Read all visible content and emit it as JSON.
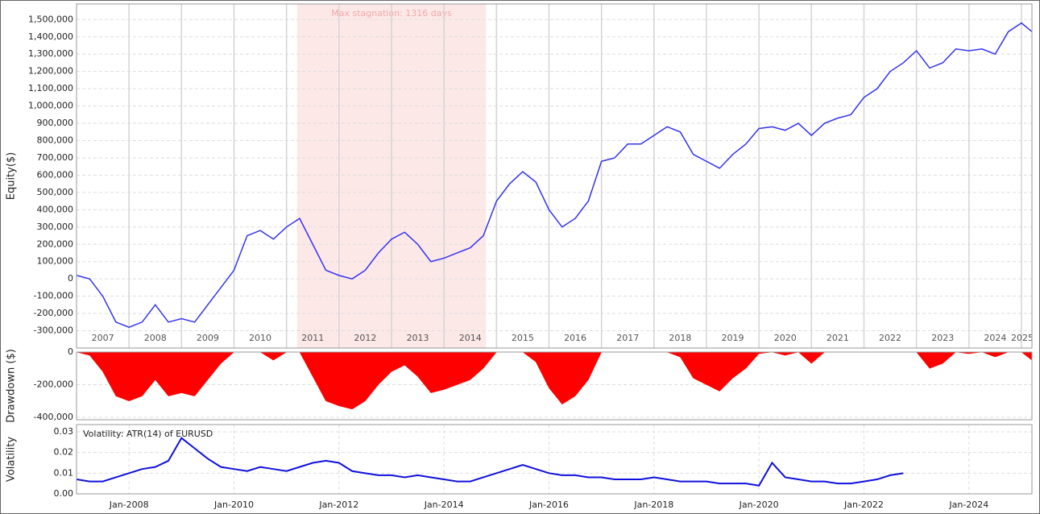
{
  "chart_data": [
    {
      "type": "line",
      "ylabel": "Equity($)",
      "color": "#3333ee",
      "grid": true,
      "xlim": [
        2007,
        2025.2
      ],
      "ylim": [
        -400000,
        1590000
      ],
      "yticks": [
        {
          "value": -300000,
          "label": "-300,000"
        },
        {
          "value": -200000,
          "label": "-200,000"
        },
        {
          "value": -100000,
          "label": "-100,000"
        },
        0,
        {
          "value": 100000,
          "label": "100,000"
        },
        {
          "value": 200000,
          "label": "200,000"
        },
        {
          "value": 300000,
          "label": "300,000"
        },
        {
          "value": 400000,
          "label": "400,000"
        },
        {
          "value": 500000,
          "label": "500,000"
        },
        {
          "value": 600000,
          "label": "600,000"
        },
        {
          "value": 700000,
          "label": "700,000"
        },
        {
          "value": 800000,
          "label": "800,000"
        },
        {
          "value": 900000,
          "label": "900,000"
        },
        {
          "value": 1000000,
          "label": "1,000,000"
        },
        {
          "value": 1100000,
          "label": "1,100,000"
        },
        {
          "value": 1200000,
          "label": "1,200,000"
        },
        {
          "value": 1300000,
          "label": "1,300,000"
        },
        {
          "value": 1400000,
          "label": "1,400,000"
        },
        {
          "value": 1500000,
          "label": "1,500,000"
        }
      ],
      "xticks": [
        {
          "value": 2007,
          "label": "2007"
        },
        {
          "value": 2008,
          "label": "2008"
        },
        {
          "value": 2009,
          "label": "2009"
        },
        {
          "value": 2010,
          "label": "2010"
        },
        {
          "value": 2011,
          "label": "2011"
        },
        {
          "value": 2012,
          "label": "2012"
        },
        {
          "value": 2013,
          "label": "2013"
        },
        {
          "value": 2014,
          "label": "2014"
        },
        {
          "value": 2015,
          "label": "2015"
        },
        {
          "value": 2016,
          "label": "2016"
        },
        {
          "value": 2017,
          "label": "2017"
        },
        {
          "value": 2018,
          "label": "2018"
        },
        {
          "value": 2019,
          "label": "2019"
        },
        {
          "value": 2020,
          "label": "2020"
        },
        {
          "value": 2021,
          "label": "2021"
        },
        {
          "value": 2022,
          "label": "2022"
        },
        {
          "value": 2023,
          "label": "2023"
        },
        {
          "value": 2024,
          "label": "2024"
        },
        {
          "value": 2025,
          "label": "2025"
        }
      ],
      "annotation": {
        "text": "Max stagnation: 1316 days",
        "x": [
          2011.2,
          2014.8
        ],
        "color": "#fde8e8"
      },
      "x": [
        2007,
        2007.25,
        2007.5,
        2007.75,
        2008,
        2008.25,
        2008.5,
        2008.75,
        2009,
        2009.25,
        2009.5,
        2009.75,
        2010,
        2010.25,
        2010.5,
        2010.75,
        2011,
        2011.25,
        2011.5,
        2011.75,
        2012,
        2012.25,
        2012.5,
        2012.75,
        2013,
        2013.25,
        2013.5,
        2013.75,
        2014,
        2014.25,
        2014.5,
        2014.75,
        2015,
        2015.25,
        2015.5,
        2015.75,
        2016,
        2016.25,
        2016.5,
        2016.75,
        2017,
        2017.25,
        2017.5,
        2017.75,
        2018,
        2018.25,
        2018.5,
        2018.75,
        2019,
        2019.25,
        2019.5,
        2019.75,
        2020,
        2020.25,
        2020.5,
        2020.75,
        2021,
        2021.25,
        2021.5,
        2021.75,
        2022,
        2022.25,
        2022.5,
        2022.75,
        2023,
        2023.25,
        2023.5,
        2023.75,
        2024,
        2024.25,
        2024.5,
        2024.75,
        2025,
        2025.2
      ],
      "series": [
        {
          "values": [
            20000,
            0,
            -100000,
            -250000,
            -280000,
            -250000,
            -150000,
            -250000,
            -230000,
            -250000,
            -150000,
            -50000,
            50000,
            250000,
            280000,
            230000,
            300000,
            350000,
            200000,
            50000,
            20000,
            0,
            50000,
            150000,
            230000,
            270000,
            200000,
            100000,
            120000,
            150000,
            180000,
            250000,
            450000,
            550000,
            620000,
            560000,
            400000,
            300000,
            350000,
            450000,
            680000,
            700000,
            780000,
            780000,
            830000,
            880000,
            850000,
            720000,
            680000,
            640000,
            720000,
            780000,
            870000,
            880000,
            860000,
            900000,
            830000,
            900000,
            930000,
            950000,
            1050000,
            1100000,
            1200000,
            1250000,
            1320000,
            1220000,
            1250000,
            1330000,
            1320000,
            1330000,
            1300000,
            1430000,
            1480000,
            1430000
          ]
        }
      ]
    },
    {
      "type": "area",
      "ylabel": "Drawdown ($)",
      "color": "#ff0000",
      "grid": true,
      "xlim": [
        2007,
        2025.2
      ],
      "ylim": [
        -415000,
        0
      ],
      "yticks": [
        {
          "value": -400000,
          "label": "-400,000"
        },
        {
          "value": -200000,
          "label": "-200,000"
        },
        0
      ],
      "x": [
        2007,
        2007.25,
        2007.5,
        2007.75,
        2008,
        2008.25,
        2008.5,
        2008.75,
        2009,
        2009.25,
        2009.5,
        2009.75,
        2010,
        2010.25,
        2010.5,
        2010.75,
        2011,
        2011.25,
        2011.5,
        2011.75,
        2012,
        2012.25,
        2012.5,
        2012.75,
        2013,
        2013.25,
        2013.5,
        2013.75,
        2014,
        2014.25,
        2014.5,
        2014.75,
        2015,
        2015.25,
        2015.5,
        2015.75,
        2016,
        2016.25,
        2016.5,
        2016.75,
        2017,
        2017.25,
        2017.5,
        2017.75,
        2018,
        2018.25,
        2018.5,
        2018.75,
        2019,
        2019.25,
        2019.5,
        2019.75,
        2020,
        2020.25,
        2020.5,
        2020.75,
        2021,
        2021.25,
        2021.5,
        2021.75,
        2022,
        2022.25,
        2022.5,
        2022.75,
        2023,
        2023.25,
        2023.5,
        2023.75,
        2024,
        2024.25,
        2024.5,
        2024.75,
        2025,
        2025.2
      ],
      "series": [
        {
          "values": [
            0,
            -20000,
            -120000,
            -270000,
            -300000,
            -270000,
            -170000,
            -270000,
            -250000,
            -270000,
            -170000,
            -70000,
            0,
            0,
            0,
            -50000,
            0,
            0,
            -150000,
            -300000,
            -330000,
            -350000,
            -300000,
            -200000,
            -120000,
            -80000,
            -150000,
            -250000,
            -230000,
            -200000,
            -170000,
            -100000,
            0,
            0,
            0,
            -60000,
            -220000,
            -320000,
            -270000,
            -170000,
            0,
            0,
            0,
            0,
            0,
            0,
            -30000,
            -160000,
            -200000,
            -240000,
            -160000,
            -100000,
            -10000,
            0,
            -20000,
            0,
            -70000,
            0,
            0,
            0,
            0,
            0,
            0,
            0,
            0,
            -100000,
            -70000,
            0,
            -10000,
            0,
            -30000,
            0,
            0,
            -50000
          ]
        }
      ]
    },
    {
      "type": "line",
      "ylabel": "Volatility",
      "title": "Volatility: ATR(14) of EURUSD",
      "color": "#1010dd",
      "grid": true,
      "xlim": [
        2007,
        2025.2
      ],
      "ylim": [
        0,
        0.0335
      ],
      "yticks": [
        {
          "value": 0,
          "label": "0.00"
        },
        0.01,
        0.02,
        0.03
      ],
      "xticks": [
        {
          "value": 2008,
          "label": "Jan-2008"
        },
        {
          "value": 2010,
          "label": "Jan-2010"
        },
        {
          "value": 2012,
          "label": "Jan-2012"
        },
        {
          "value": 2014,
          "label": "Jan-2014"
        },
        {
          "value": 2016,
          "label": "Jan-2016"
        },
        {
          "value": 2018,
          "label": "Jan-2018"
        },
        {
          "value": 2020,
          "label": "Jan-2020"
        },
        {
          "value": 2022,
          "label": "Jan-2022"
        },
        {
          "value": 2024,
          "label": "Jan-2024"
        }
      ],
      "x": [
        2007,
        2007.25,
        2007.5,
        2007.75,
        2008,
        2008.25,
        2008.5,
        2008.75,
        2009,
        2009.25,
        2009.5,
        2009.75,
        2010,
        2010.25,
        2010.5,
        2010.75,
        2011,
        2011.25,
        2011.5,
        2011.75,
        2012,
        2012.25,
        2012.5,
        2012.75,
        2013,
        2013.25,
        2013.5,
        2013.75,
        2014,
        2014.25,
        2014.5,
        2014.75,
        2015,
        2015.25,
        2015.5,
        2015.75,
        2016,
        2016.25,
        2016.5,
        2016.75,
        2017,
        2017.25,
        2017.5,
        2017.75,
        2018,
        2018.25,
        2018.5,
        2018.75,
        2019,
        2019.25,
        2019.5,
        2019.75,
        2020,
        2020.25,
        2020.5,
        2020.75,
        2021,
        2021.25,
        2021.5,
        2021.75,
        2022,
        2022.25,
        2022.5,
        2022.75
      ],
      "series": [
        {
          "values": [
            0.007,
            0.006,
            0.006,
            0.008,
            0.01,
            0.012,
            0.013,
            0.016,
            0.027,
            0.022,
            0.017,
            0.013,
            0.012,
            0.011,
            0.013,
            0.012,
            0.011,
            0.013,
            0.015,
            0.016,
            0.015,
            0.011,
            0.01,
            0.009,
            0.009,
            0.008,
            0.009,
            0.008,
            0.007,
            0.006,
            0.006,
            0.008,
            0.01,
            0.012,
            0.014,
            0.012,
            0.01,
            0.009,
            0.009,
            0.008,
            0.008,
            0.007,
            0.007,
            0.007,
            0.008,
            0.007,
            0.006,
            0.006,
            0.006,
            0.005,
            0.005,
            0.005,
            0.004,
            0.015,
            0.008,
            0.007,
            0.006,
            0.006,
            0.005,
            0.005,
            0.006,
            0.007,
            0.009,
            0.01
          ]
        }
      ]
    }
  ]
}
